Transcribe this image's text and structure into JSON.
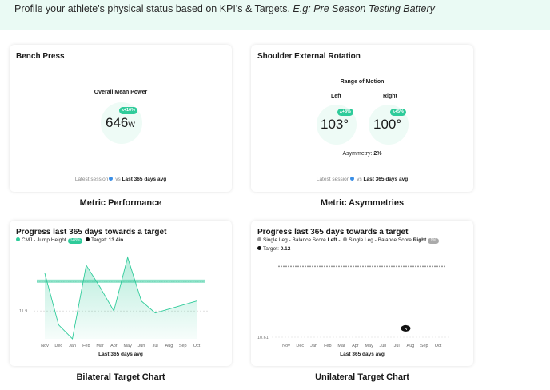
{
  "banner": {
    "text": "Profile your athlete's physical status based on KPI's & Targets. ",
    "example": "E.g: Pre Season Testing Battery"
  },
  "colors": {
    "accent": "#2fcb9a",
    "banner_bg": "#eafaf4",
    "circle_bg": "#eefbf6",
    "info": "#3a8ee6"
  },
  "metric_performance": {
    "title": "Bench Press",
    "metric_label": "Overall Mean Power",
    "value": "646",
    "unit": "W",
    "badge": "+16%",
    "badge_icon": "arrow-up-icon",
    "footer_prefix": "Latest session",
    "footer_vs": "vs",
    "footer_suffix": "Last 365 days avg",
    "caption": "Metric Performance"
  },
  "metric_asymmetries": {
    "title": "Shoulder External Rotation",
    "metric_label": "Range of Motion",
    "left_label": "Left",
    "left_value": "103°",
    "left_badge": "+8%",
    "right_label": "Right",
    "right_value": "100°",
    "right_badge": "+5%",
    "asymmetry_label": "Asymmetry:",
    "asymmetry_value": "2%",
    "footer_prefix": "Latest session",
    "footer_vs": "vs",
    "footer_suffix": "Last 365 days avg",
    "caption": "Metric Asymmetries"
  },
  "bilateral": {
    "title": "Progress last 365 days towards a target",
    "legend_series": "CMJ - Jump Height",
    "legend_badge": "148%",
    "legend_target_label": "Target:",
    "legend_target_value": "13.4in",
    "caption": "Bilateral Target Chart",
    "chart_data": {
      "type": "area",
      "categories": [
        "Nov",
        "Dec",
        "Jan",
        "Feb",
        "Mar",
        "Apr",
        "May",
        "Jun",
        "Jul",
        "Aug",
        "Sep",
        "Oct"
      ],
      "values": [
        13.8,
        11.2,
        10.5,
        14.2,
        13.1,
        11.9,
        14.6,
        12.4,
        11.8,
        12.0,
        12.2,
        12.4
      ],
      "target": 13.4,
      "ytick": "11.9",
      "ytick_value": 11.9,
      "ylim": [
        10.5,
        15.0
      ],
      "xlabel": "Last 365 days avg",
      "series_color": "#2fcb9a",
      "target_color": "#2fcb9a"
    }
  },
  "unilateral": {
    "title": "Progress last 365 days towards a target",
    "legend_left_prefix": "Single Leg - Balance Score",
    "legend_left_side": "Left",
    "legend_right_prefix": "Single Leg - Balance Score",
    "legend_right_side": "Right",
    "legend_right_badge": "1%",
    "legend_target_label": "Target:",
    "legend_target_value": "0.12",
    "caption": "Unilateral Target Chart",
    "chart_data": {
      "type": "line",
      "categories": [
        "Nov",
        "Dec",
        "Jan",
        "Feb",
        "Mar",
        "Apr",
        "May",
        "Jun",
        "Jul",
        "Aug",
        "Sep",
        "Oct"
      ],
      "target": 0.12,
      "ytick": "10.61",
      "ylim": [
        0.0,
        0.13
      ],
      "point_category": "Aug",
      "point_value": 0.015,
      "point_label": "R",
      "xlabel": "Last 365 days avg",
      "target_color": "#999999"
    }
  }
}
